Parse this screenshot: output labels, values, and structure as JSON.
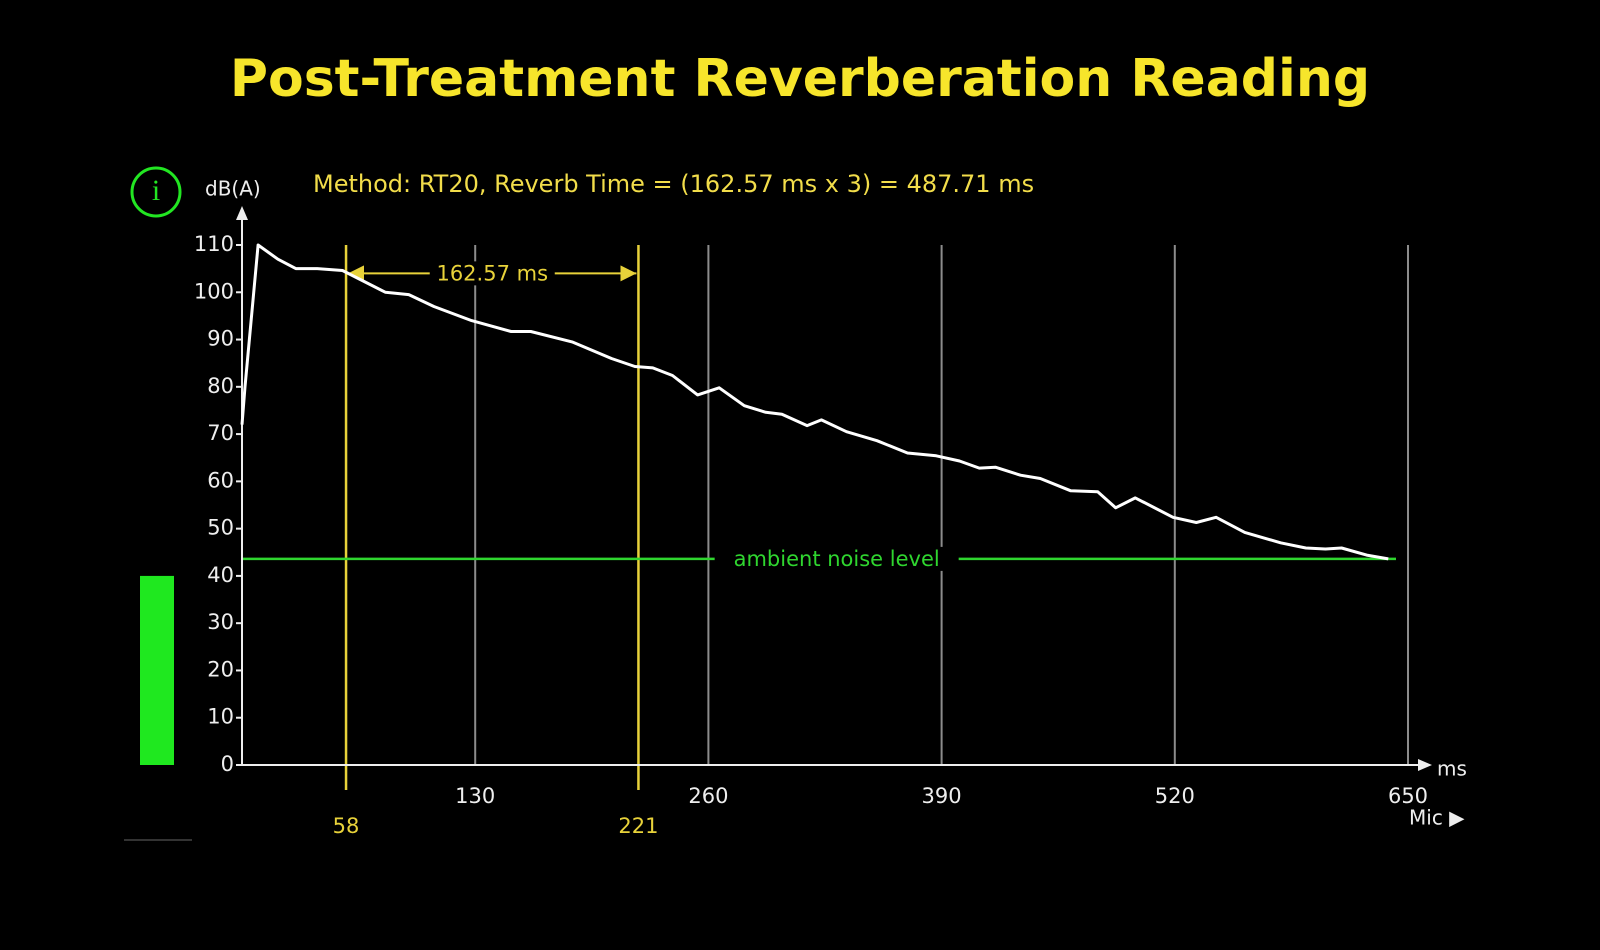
{
  "chart_data": {
    "type": "line",
    "title": "Post-Treatment Reverberation Reading",
    "subtitle": "Method: RT20, Reverb Time = (162.57 ms x 3) = 487.71 ms",
    "info_icon": "i",
    "y_label": "dB(A)",
    "x_label": "ms",
    "input_label": "Mic ▶",
    "x": [
      0,
      1.7,
      9,
      20,
      30,
      42,
      56,
      67,
      80,
      93,
      107,
      128,
      150,
      161,
      184,
      206,
      219,
      229,
      240,
      254,
      266,
      280,
      292,
      301,
      315,
      323,
      337,
      354,
      371,
      387,
      400,
      411,
      420,
      434,
      445,
      462,
      477,
      487,
      498,
      519,
      532,
      543,
      559,
      579,
      593,
      604,
      613,
      627,
      639
    ],
    "values": [
      72,
      80,
      110,
      107,
      105,
      105,
      104.6,
      102.5,
      100,
      99.5,
      97,
      94,
      91.7,
      91.7,
      89.5,
      86,
      84.3,
      84,
      82.4,
      78.3,
      79.8,
      76,
      74.6,
      74.2,
      71.8,
      73,
      70.5,
      68.6,
      66,
      65.4,
      64.3,
      62.8,
      63,
      61.3,
      60.6,
      58,
      57.8,
      54.4,
      56.5,
      52.4,
      51.3,
      52.4,
      49.2,
      47,
      45.9,
      45.7,
      45.9,
      44.4,
      43.6
    ],
    "color": "#ffffff",
    "xlim": [
      0,
      650
    ],
    "ylim": [
      0,
      110
    ],
    "xticks": [
      130,
      260,
      390,
      520,
      650
    ],
    "yticks": [
      0,
      10,
      20,
      30,
      40,
      50,
      60,
      70,
      80,
      90,
      100,
      110
    ],
    "grid": true,
    "grid_color": "#8c8c8c",
    "markers": [
      58,
      221
    ],
    "marker_color": "#e8d23a",
    "interval_label": "162.57 ms",
    "interval_level": 104,
    "ambient_noise": {
      "value": 43.6,
      "label": "ambient noise level",
      "color": "#2fd62f"
    },
    "level_meter": {
      "value": 40,
      "color": "#1fe81f"
    }
  }
}
